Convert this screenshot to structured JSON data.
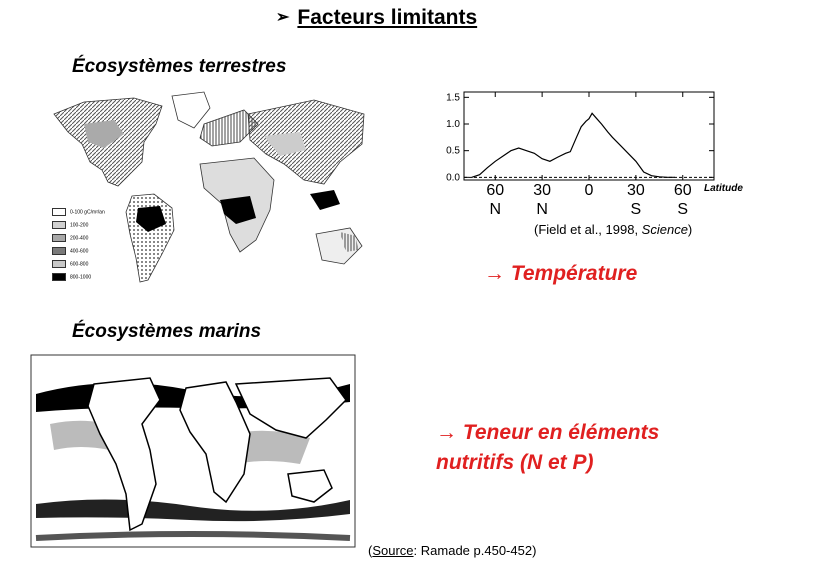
{
  "header": {
    "bullet": "➢",
    "title": "Facteurs limitants"
  },
  "terrestrial": {
    "heading": "Écosystèmes terrestres",
    "legend": [
      {
        "label": "0-100 gC/m²/an",
        "fill": "#ffffff"
      },
      {
        "label": "100-200",
        "fill": "#d0d0d0"
      },
      {
        "label": "200-400",
        "fill": "#a8a8a8"
      },
      {
        "label": "400-600",
        "fill": "#7a7a7a"
      },
      {
        "label": "600-800",
        "fill": "#c8c8c8"
      },
      {
        "label": "800-1000",
        "fill": "#000000"
      }
    ]
  },
  "marine": {
    "heading": "Écosystèmes marins"
  },
  "arrows": {
    "temperature": "→ Température",
    "nutrients_line1": "→ Teneur en éléments",
    "nutrients_line2": "nutritifs (N et P)"
  },
  "citation": {
    "before": "(Field et al., 1998, ",
    "journal": "Science",
    "after": ")"
  },
  "source": {
    "label": "Source",
    "rest": ": Ramade p.450-452)",
    "open": "("
  },
  "chart_data": {
    "type": "line",
    "title": "",
    "xlabel": "Latitude",
    "ylabel": "",
    "x_tick_labels": [
      {
        "value": "60",
        "hemisphere": "N"
      },
      {
        "value": "30",
        "hemisphere": "N"
      },
      {
        "value": "0",
        "hemisphere": ""
      },
      {
        "value": "30",
        "hemisphere": "S"
      },
      {
        "value": "60",
        "hemisphere": "S"
      }
    ],
    "x_tick_positions": [
      60,
      30,
      0,
      -30,
      -60
    ],
    "xlim": [
      80,
      -80
    ],
    "ylim": [
      -0.05,
      1.6
    ],
    "y_ticks": [
      "0.0",
      "0.5",
      "1.0",
      "1.5"
    ],
    "y_tick_values": [
      0,
      0.5,
      1.0,
      1.5
    ],
    "baseline": 0,
    "series": [
      {
        "x": [
          75,
          70,
          65,
          60,
          55,
          50,
          45,
          40,
          35,
          30,
          25,
          20,
          15,
          12,
          8,
          5,
          2,
          0,
          -2,
          -5,
          -8,
          -12,
          -15,
          -20,
          -25,
          -30,
          -35,
          -40,
          -45,
          -50,
          -55
        ],
        "values": [
          0.0,
          0.05,
          0.18,
          0.3,
          0.4,
          0.5,
          0.55,
          0.5,
          0.45,
          0.35,
          0.3,
          0.38,
          0.45,
          0.48,
          0.75,
          0.95,
          1.05,
          1.1,
          1.2,
          1.1,
          1.0,
          0.85,
          0.75,
          0.6,
          0.45,
          0.3,
          0.1,
          0.03,
          0.01,
          0.0,
          0.0
        ]
      }
    ]
  }
}
